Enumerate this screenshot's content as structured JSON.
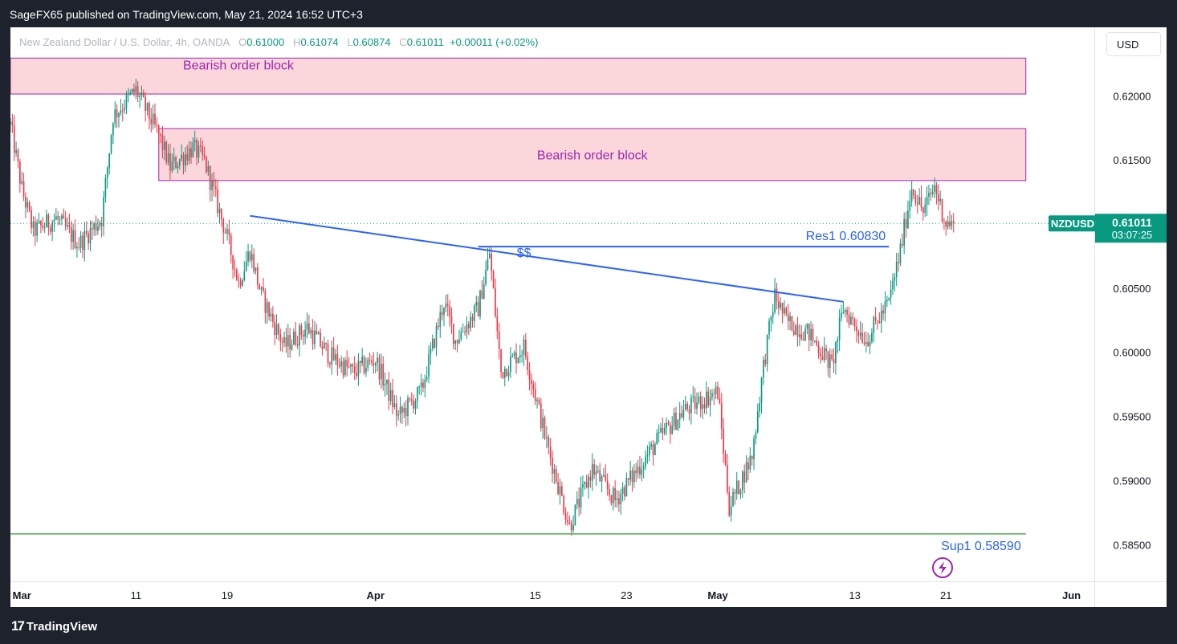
{
  "header": {
    "publish_line": "SageFX65 published on TradingView.com, May 21, 2024 16:52 UTC+3"
  },
  "legend": {
    "symbol_desc": "New Zealand Dollar / U.S. Dollar, 4h, OANDA",
    "o_label": "O",
    "o_value": "0.61000",
    "h_label": "H",
    "h_value": "0.61074",
    "l_label": "L",
    "l_value": "0.60874",
    "c_label": "C",
    "c_value": "0.61011",
    "change": "+0.00011 (+0.02%)"
  },
  "currency_button": "USD",
  "footer": {
    "brand": "TradingView"
  },
  "colors": {
    "up": "#089981",
    "down": "#f23645",
    "ob_fill": "#fbd7dc",
    "ob_border": "#9c27b0",
    "trendline": "#2962ff",
    "support": "#4caf50",
    "text_purple": "#9c27b0",
    "text_blue": "#2962ff"
  },
  "chart_data": {
    "type": "candlestick",
    "symbol": "NZDUSD",
    "timeframe": "4h",
    "y_ticks": [
      "0.62000",
      "0.61500",
      "0.60500",
      "0.60000",
      "0.59500",
      "0.59000",
      "0.58500"
    ],
    "y_tick_values": [
      0.62,
      0.615,
      0.605,
      0.6,
      0.595,
      0.59,
      0.585
    ],
    "x_ticks": [
      "Mar",
      "11",
      "19",
      "Apr",
      "15",
      "23",
      "May",
      "13",
      "21",
      "Jun"
    ],
    "x_tick_dates": [
      "2024-03-01",
      "2024-03-11",
      "2024-03-19",
      "2024-04-01",
      "2024-04-15",
      "2024-04-23",
      "2024-05-01",
      "2024-05-13",
      "2024-05-21",
      "2024-06-01"
    ],
    "ylim": [
      0.5822,
      0.6254
    ],
    "date_range": [
      "2024-02-29",
      "2024-06-03"
    ],
    "last_price": {
      "symbol_label": "NZDUSD",
      "value": "0.61011",
      "countdown": "03:07:25",
      "price": 0.61011
    },
    "zones": [
      {
        "label": "Bearish order block",
        "start": "2024-03-13",
        "end": "2024-05-28",
        "top": 0.6175,
        "bottom": 0.61345,
        "label_pos": "center"
      },
      {
        "label": "Bearish order block",
        "start": "2024-02-29",
        "end": "2024-05-28",
        "top": 0.623,
        "bottom": 0.6202,
        "label_pos": "top-left"
      }
    ],
    "lines": [
      {
        "kind": "trendline",
        "start": "2024-03-21",
        "start_price": 0.6107,
        "end": "2024-05-12",
        "end_price": 0.604
      },
      {
        "kind": "resistance",
        "label": "Res1 0.60830",
        "price": 0.6083,
        "start": "2024-04-10",
        "end": "2024-05-16"
      },
      {
        "kind": "support",
        "label": "Sup1 0.58590",
        "price": 0.5859,
        "start": "2024-02-29",
        "end": "2024-05-28"
      }
    ],
    "annotations": [
      {
        "text": "$$",
        "date": "2024-04-14",
        "price": 0.608
      }
    ],
    "anchors": [
      [
        "2024-02-29",
        0.6178
      ],
      [
        "2024-03-01",
        0.6128
      ],
      [
        "2024-03-02",
        0.6095
      ],
      [
        "2024-03-04",
        0.6105
      ],
      [
        "2024-03-06",
        0.6085
      ],
      [
        "2024-03-08",
        0.6105
      ],
      [
        "2024-03-09",
        0.6185
      ],
      [
        "2024-03-10",
        0.6195
      ],
      [
        "2024-03-11",
        0.6205
      ],
      [
        "2024-03-13",
        0.617
      ],
      [
        "2024-03-14",
        0.6145
      ],
      [
        "2024-03-16",
        0.616
      ],
      [
        "2024-03-17",
        0.615
      ],
      [
        "2024-03-19",
        0.609
      ],
      [
        "2024-03-20",
        0.6055
      ],
      [
        "2024-03-21",
        0.608
      ],
      [
        "2024-03-22",
        0.6045
      ],
      [
        "2024-03-24",
        0.6005
      ],
      [
        "2024-03-26",
        0.602
      ],
      [
        "2024-03-28",
        0.5998
      ],
      [
        "2024-03-30",
        0.5985
      ],
      [
        "2024-04-01",
        0.5995
      ],
      [
        "2024-04-03",
        0.595
      ],
      [
        "2024-04-05",
        0.597
      ],
      [
        "2024-04-07",
        0.604
      ],
      [
        "2024-04-08",
        0.601
      ],
      [
        "2024-04-10",
        0.6035
      ],
      [
        "2024-04-11",
        0.6078
      ],
      [
        "2024-04-12",
        0.5985
      ],
      [
        "2024-04-14",
        0.6005
      ],
      [
        "2024-04-16",
        0.593
      ],
      [
        "2024-04-18",
        0.5865
      ],
      [
        "2024-04-20",
        0.591
      ],
      [
        "2024-04-22",
        0.5885
      ],
      [
        "2024-04-24",
        0.591
      ],
      [
        "2024-04-26",
        0.5935
      ],
      [
        "2024-04-28",
        0.5955
      ],
      [
        "2024-05-01",
        0.597
      ],
      [
        "2024-05-02",
        0.588
      ],
      [
        "2024-05-04",
        0.592
      ],
      [
        "2024-05-05",
        0.599
      ],
      [
        "2024-05-06",
        0.6045
      ],
      [
        "2024-05-07",
        0.6025
      ],
      [
        "2024-05-09",
        0.6015
      ],
      [
        "2024-05-11",
        0.599
      ],
      [
        "2024-05-12",
        0.6035
      ],
      [
        "2024-05-14",
        0.601
      ],
      [
        "2024-05-16",
        0.604
      ],
      [
        "2024-05-17",
        0.608
      ],
      [
        "2024-05-18",
        0.613
      ],
      [
        "2024-05-19",
        0.611
      ],
      [
        "2024-05-20",
        0.613
      ],
      [
        "2024-05-21",
        0.6101
      ]
    ]
  }
}
